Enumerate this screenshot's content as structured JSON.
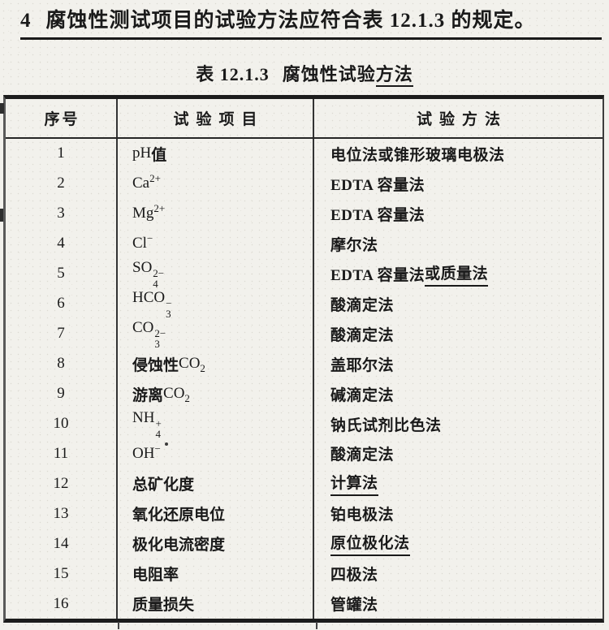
{
  "colors": {
    "paper": "#f2f1ec",
    "ink": "#1a1a1a",
    "border_heavy": "#1c1c1c",
    "border_light": "#5a5a5a"
  },
  "heading": {
    "number": "4",
    "text": "腐蚀性测试项目的试验方法应符合表 12.1.3 的规定。"
  },
  "title": {
    "prefix": "表 12.1.3",
    "main": "腐蚀性试验",
    "underlined": "方法"
  },
  "table": {
    "headers": [
      "序号",
      "试验项目",
      "试验方法"
    ],
    "rows": [
      {
        "num": "1",
        "item": [
          {
            "t": "pH "
          },
          {
            "t": "值",
            "b": true
          }
        ],
        "method": [
          {
            "t": "电位法或锥形玻璃电极法"
          }
        ]
      },
      {
        "num": "2",
        "item": [
          {
            "t": "Ca",
            "sup": "2+"
          }
        ],
        "method": [
          {
            "t": "EDTA 容量法"
          }
        ]
      },
      {
        "num": "3",
        "item": [
          {
            "t": "Mg",
            "sup": "2+"
          }
        ],
        "method": [
          {
            "t": "EDTA 容量法"
          }
        ]
      },
      {
        "num": "4",
        "item": [
          {
            "t": "Cl",
            "sup": "−"
          }
        ],
        "method": [
          {
            "t": "摩尔法"
          }
        ]
      },
      {
        "num": "5",
        "item": [
          {
            "t": "SO",
            "sup": "2−",
            "sub": "4"
          }
        ],
        "method": [
          {
            "t": "EDTA 容量法"
          },
          {
            "t": "或质量法",
            "u": true
          }
        ]
      },
      {
        "num": "6",
        "item": [
          {
            "t": "HCO",
            "sup": "−",
            "sub": "3"
          }
        ],
        "method": [
          {
            "t": "酸滴定法"
          }
        ]
      },
      {
        "num": "7",
        "item": [
          {
            "t": "CO",
            "sup": "2−",
            "sub": "3"
          }
        ],
        "method": [
          {
            "t": "酸滴定法"
          }
        ]
      },
      {
        "num": "8",
        "item": [
          {
            "t": "侵蚀性 ",
            "b": true
          },
          {
            "t": "CO",
            "sub": "2"
          }
        ],
        "method": [
          {
            "t": "盖耶尔法"
          }
        ]
      },
      {
        "num": "9",
        "item": [
          {
            "t": "游离 ",
            "b": true
          },
          {
            "t": "CO",
            "sub": "2"
          }
        ],
        "method": [
          {
            "t": "碱滴定法"
          }
        ]
      },
      {
        "num": "10",
        "item": [
          {
            "t": "NH",
            "sup": "+",
            "sub": "4"
          }
        ],
        "method": [
          {
            "t": "钠氏试剂比色法"
          }
        ]
      },
      {
        "num": "11",
        "item": [
          {
            "t": "OH",
            "sup": "−"
          }
        ],
        "method": [
          {
            "t": "酸滴定法"
          }
        ]
      },
      {
        "num": "12",
        "item": [
          {
            "t": "总矿化度",
            "b": true
          }
        ],
        "method": [
          {
            "t": "计算法",
            "u": true
          }
        ]
      },
      {
        "num": "13",
        "item": [
          {
            "t": "氧化还原电位",
            "b": true
          }
        ],
        "method": [
          {
            "t": "铂电极法"
          }
        ]
      },
      {
        "num": "14",
        "item": [
          {
            "t": "极化电流密度",
            "b": true
          }
        ],
        "method": [
          {
            "t": "原位极化法",
            "u": true
          }
        ]
      },
      {
        "num": "15",
        "item": [
          {
            "t": "电阻率",
            "b": true
          }
        ],
        "method": [
          {
            "t": "四极法"
          }
        ]
      },
      {
        "num": "16",
        "item": [
          {
            "t": "质量损失",
            "b": true
          }
        ],
        "method": [
          {
            "t": "管罐法"
          }
        ]
      }
    ]
  }
}
